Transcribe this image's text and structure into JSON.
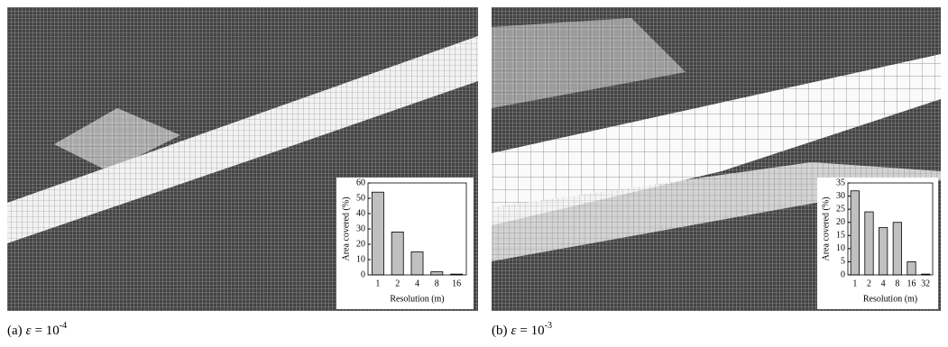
{
  "chart_data": [
    {
      "type": "bar",
      "xlabel": "Resolution (m)",
      "ylabel": "Area covered (%)",
      "categories": [
        "1",
        "2",
        "4",
        "8",
        "16"
      ],
      "values": [
        54,
        28,
        15,
        2,
        0.5
      ],
      "color": "#c0c0c0",
      "ylim": [
        0,
        60
      ],
      "yticks": [
        0,
        10,
        20,
        30,
        40,
        50,
        60
      ],
      "caption": {
        "label": "(a)",
        "symbol": "ε",
        "relation": "= 10",
        "exponent": "-4"
      }
    },
    {
      "type": "bar",
      "xlabel": "Resolution (m)",
      "ylabel": "Area covered (%)",
      "categories": [
        "1",
        "2",
        "4",
        "8",
        "16",
        "32"
      ],
      "values": [
        32,
        24,
        18,
        20,
        5,
        0.3
      ],
      "color": "#c0c0c0",
      "ylim": [
        0,
        35
      ],
      "yticks": [
        0,
        5,
        10,
        15,
        20,
        25,
        30,
        35
      ],
      "caption": {
        "label": "(b)",
        "symbol": "ε",
        "relation": "= 10",
        "exponent": "-3"
      }
    }
  ]
}
